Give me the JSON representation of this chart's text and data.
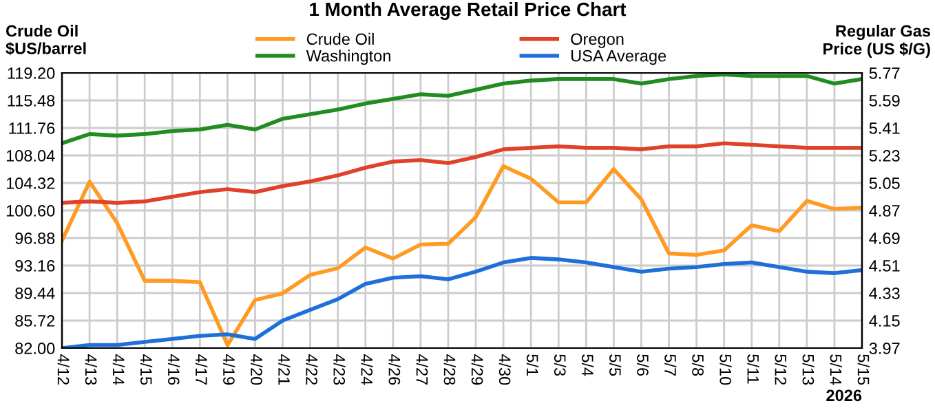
{
  "chart_data": {
    "type": "line",
    "title": "1 Month Average Retail Price Chart",
    "xlabel": "2026",
    "ylabel": "Crude Oil\n$US/barrel",
    "y2label": "Regular Gas\nPrice (US $/G)",
    "categories": [
      "4/12",
      "4/13",
      "4/14",
      "4/15",
      "4/16",
      "4/17",
      "4/19",
      "4/20",
      "4/21",
      "4/22",
      "4/23",
      "4/24",
      "4/26",
      "4/27",
      "4/28",
      "4/29",
      "4/30",
      "5/1",
      "5/3",
      "5/4",
      "5/5",
      "5/6",
      "5/7",
      "5/8",
      "5/10",
      "5/11",
      "5/12",
      "5/13",
      "5/14",
      "5/15"
    ],
    "series": [
      {
        "name": "Crude Oil",
        "color": "#ff9a22",
        "values": [
          96.5,
          104.5,
          98.9,
          91.1,
          91.1,
          90.9,
          82.4,
          88.5,
          89.4,
          91.9,
          92.8,
          95.6,
          94.1,
          96.0,
          96.1,
          99.7,
          106.6,
          104.9,
          101.7,
          101.7,
          106.2,
          102.1,
          94.8,
          94.6,
          95.2,
          98.6,
          97.8,
          101.9,
          100.8,
          101.0
        ]
      },
      {
        "name": "Washington",
        "color": "#218c21",
        "axis": "y2",
        "values": [
          5.31,
          5.37,
          5.36,
          5.37,
          5.39,
          5.4,
          5.43,
          5.4,
          5.47,
          5.5,
          5.53,
          5.57,
          5.6,
          5.63,
          5.62,
          5.66,
          5.7,
          5.72,
          5.73,
          5.73,
          5.73,
          5.7,
          5.73,
          5.75,
          5.76,
          5.75,
          5.75,
          5.75,
          5.7,
          5.73
        ]
      },
      {
        "name": "Oregon",
        "color": "#e0412b",
        "axis": "y2",
        "values": [
          4.92,
          4.93,
          4.92,
          4.93,
          4.96,
          4.99,
          5.01,
          4.99,
          5.03,
          5.06,
          5.1,
          5.15,
          5.19,
          5.2,
          5.18,
          5.22,
          5.27,
          5.28,
          5.29,
          5.28,
          5.28,
          5.27,
          5.29,
          5.29,
          5.31,
          5.3,
          5.29,
          5.28,
          5.28,
          5.28
        ]
      },
      {
        "name": "USA Average",
        "color": "#1f6fd9",
        "axis": "y2",
        "values": [
          3.97,
          3.99,
          3.99,
          4.01,
          4.03,
          4.05,
          4.06,
          4.03,
          4.15,
          4.22,
          4.29,
          4.39,
          4.43,
          4.44,
          4.42,
          4.47,
          4.53,
          4.56,
          4.55,
          4.53,
          4.5,
          4.47,
          4.49,
          4.5,
          4.52,
          4.53,
          4.5,
          4.47,
          4.46,
          4.48
        ]
      }
    ],
    "ylim": [
      82.0,
      119.2
    ],
    "yticks": [
      {
        "value": 82.0,
        "label": "82.00"
      },
      {
        "value": 85.72,
        "label": "85.72"
      },
      {
        "value": 89.44,
        "label": "89.44"
      },
      {
        "value": 93.16,
        "label": "93.16"
      },
      {
        "value": 96.88,
        "label": "96.88"
      },
      {
        "value": 100.6,
        "label": "100.60"
      },
      {
        "value": 104.32,
        "label": "104.32"
      },
      {
        "value": 108.04,
        "label": "108.04"
      },
      {
        "value": 111.76,
        "label": "111.76"
      },
      {
        "value": 115.48,
        "label": "115.48"
      },
      {
        "value": 119.2,
        "label": "119.20"
      }
    ],
    "y2lim": [
      3.97,
      5.77
    ],
    "y2ticks": [
      3.97,
      4.15,
      4.33,
      4.51,
      4.69,
      4.87,
      5.05,
      5.23,
      5.41,
      5.59,
      5.77
    ],
    "grid": true,
    "legend": "top",
    "marker": "none",
    "line_style": "solid"
  }
}
